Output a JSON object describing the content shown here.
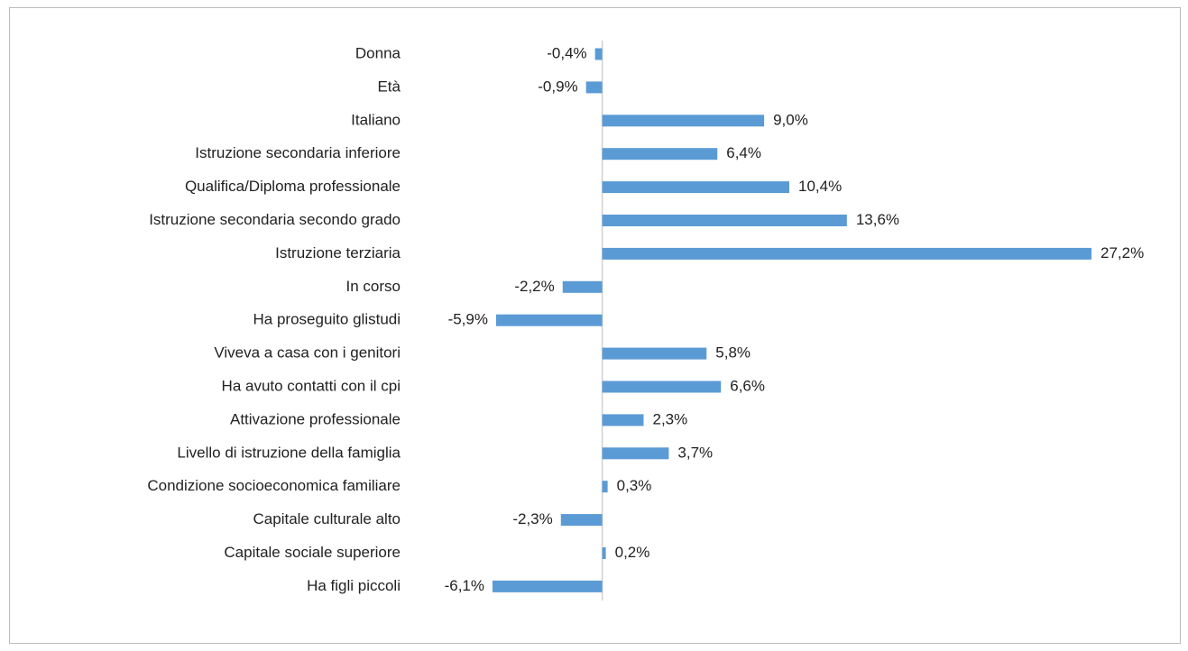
{
  "chart_data": {
    "type": "bar",
    "orientation": "horizontal",
    "color": "#5b9bd5",
    "categories": [
      "Donna",
      "Età",
      "Italiano",
      "Istruzione secondaria inferiore",
      "Qualifica/Diploma professionale",
      "Istruzione secondaria secondo grado",
      "Istruzione terziaria",
      "In corso",
      "Ha proseguito glistudi",
      "Viveva a casa con i genitori",
      "Ha avuto contatti con il cpi",
      "Attivazione professionale",
      "Livello di istruzione della famiglia",
      "Condizione socioeconomica familiare",
      "Capitale culturale alto",
      "Capitale sociale superiore",
      "Ha figli piccoli"
    ],
    "values": [
      -0.4,
      -0.9,
      9.0,
      6.4,
      10.4,
      13.6,
      27.2,
      -2.2,
      -5.9,
      5.8,
      6.6,
      2.3,
      3.7,
      0.3,
      -2.3,
      0.2,
      -6.1
    ],
    "value_labels": [
      "-0,4%",
      "-0,9%",
      "9,0%",
      "6,4%",
      "10,4%",
      "13,6%",
      "27,2%",
      "-2,2%",
      "-5,9%",
      "5,8%",
      "6,6%",
      "2,3%",
      "3,7%",
      "0,3%",
      "-2,3%",
      "0,2%",
      "-6,1%"
    ]
  }
}
